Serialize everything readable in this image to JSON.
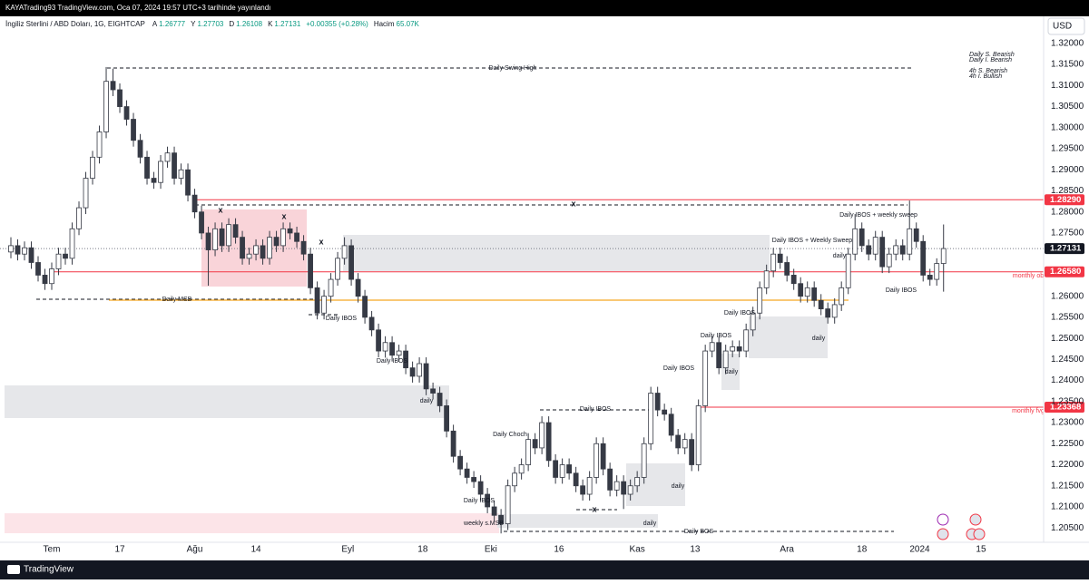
{
  "header": {
    "publisher": "KAYATrading93 TradingView.com, Oca 07, 2024 19:57 UTC+3 tarihinde yayınlandı",
    "symbol": "İngiliz Sterlini / ABD Doları, 1G, EIGHTCAP",
    "ohlc": [
      {
        "key": "A",
        "value": "1.26777"
      },
      {
        "key": "Y",
        "value": "1.27703"
      },
      {
        "key": "D",
        "value": "1.26108"
      },
      {
        "key": "K",
        "value": "1.27131"
      }
    ],
    "change": "+0.00355 (+0.28%)",
    "volume_key": "Hacim",
    "volume": "65.07K"
  },
  "currency": "USD",
  "notes": [
    "Daily S. Bearish",
    "Daily I. Bearish",
    "4h S. Bearish",
    "4h I. Bullish"
  ],
  "footer": "TradingView",
  "chart_data": {
    "type": "candlestick",
    "up_color": "#ffffff",
    "down_color": "#363a45",
    "wick_color": "#363a45",
    "xlim": [
      -1.6,
      151.7
    ],
    "ylim": [
      1.2016,
      1.326
    ],
    "xticks": [
      {
        "value": 6,
        "label": "Tem"
      },
      {
        "value": 16,
        "label": "17"
      },
      {
        "value": 27,
        "label": "Ağu"
      },
      {
        "value": 36,
        "label": "14"
      },
      {
        "value": 49.5,
        "label": "Eyl"
      },
      {
        "value": 60.5,
        "label": "18"
      },
      {
        "value": 70.5,
        "label": "Eki"
      },
      {
        "value": 80.5,
        "label": "16"
      },
      {
        "value": 92,
        "label": "Kas"
      },
      {
        "value": 100.5,
        "label": "13"
      },
      {
        "value": 114,
        "label": "Ara"
      },
      {
        "value": 125,
        "label": "18"
      },
      {
        "value": 133.5,
        "label": "2024"
      },
      {
        "value": 142.5,
        "label": "15"
      }
    ],
    "yticks": [
      {
        "value": 1.205,
        "label": "1.20500"
      },
      {
        "value": 1.21,
        "label": "1.21000"
      },
      {
        "value": 1.215,
        "label": "1.21500"
      },
      {
        "value": 1.22,
        "label": "1.22000"
      },
      {
        "value": 1.225,
        "label": "1.22500"
      },
      {
        "value": 1.23,
        "label": "1.23000"
      },
      {
        "value": 1.235,
        "label": "1.23500"
      },
      {
        "value": 1.24,
        "label": "1.24000"
      },
      {
        "value": 1.245,
        "label": "1.24500"
      },
      {
        "value": 1.25,
        "label": "1.25000"
      },
      {
        "value": 1.255,
        "label": "1.25500"
      },
      {
        "value": 1.26,
        "label": "1.26000"
      },
      {
        "value": 1.275,
        "label": "1.27500"
      },
      {
        "value": 1.28,
        "label": "1.28000"
      },
      {
        "value": 1.285,
        "label": "1.28500"
      },
      {
        "value": 1.29,
        "label": "1.29000"
      },
      {
        "value": 1.295,
        "label": "1.29500"
      },
      {
        "value": 1.3,
        "label": "1.30000"
      },
      {
        "value": 1.305,
        "label": "1.30500"
      },
      {
        "value": 1.31,
        "label": "1.31000"
      },
      {
        "value": 1.315,
        "label": "1.31500"
      },
      {
        "value": 1.32,
        "label": "1.32000"
      }
    ],
    "price_lines": [
      {
        "value": 1.2829,
        "label": "1.28290",
        "color": "#f23645"
      },
      {
        "value": 1.27131,
        "label": "1.27131",
        "color": "#131722"
      },
      {
        "value": 1.2658,
        "label": "1.26580",
        "color": "#f23645"
      },
      {
        "value": 1.23368,
        "label": "1.23368",
        "color": "#f23645"
      }
    ],
    "annotations": [
      "Daily Swing High",
      "x",
      "x",
      "x",
      "x",
      "x",
      "Daily MSB",
      "Daily IBOS",
      "Daily IBOS",
      "daily",
      "Daily Choch",
      "Daily IBOS",
      "weekly s.MSB",
      "Daily IBOS",
      "daily",
      "daily",
      "Daily BOS",
      "Daily IBOS",
      "Daily IBOS",
      "Daily IBOS",
      "daily",
      "daily",
      "Daily IBOS + Weekly Sweep",
      "daily",
      "Daily IBOS + weekly sweep",
      "Daily IBOS",
      "monthly ob",
      "monthly fvg"
    ],
    "ohlc": [
      [
        1.2705,
        1.274,
        1.269,
        1.272
      ],
      [
        1.272,
        1.2735,
        1.2685,
        1.27
      ],
      [
        1.27,
        1.273,
        1.2685,
        1.2715
      ],
      [
        1.2715,
        1.273,
        1.2665,
        1.268
      ],
      [
        1.268,
        1.2695,
        1.2635,
        1.265
      ],
      [
        1.265,
        1.2665,
        1.2615,
        1.263
      ],
      [
        1.263,
        1.268,
        1.2615,
        1.2665
      ],
      [
        1.2665,
        1.2715,
        1.265,
        1.27
      ],
      [
        1.27,
        1.2715,
        1.2675,
        1.269
      ],
      [
        1.269,
        1.2775,
        1.2675,
        1.276
      ],
      [
        1.276,
        1.2825,
        1.2745,
        1.281
      ],
      [
        1.281,
        1.2895,
        1.2795,
        1.288
      ],
      [
        1.288,
        1.2945,
        1.2865,
        1.293
      ],
      [
        1.293,
        1.3005,
        1.2915,
        1.299
      ],
      [
        1.299,
        1.3144,
        1.2975,
        1.311
      ],
      [
        1.311,
        1.314,
        1.3075,
        1.309
      ],
      [
        1.309,
        1.3105,
        1.3035,
        1.305
      ],
      [
        1.305,
        1.3065,
        1.3005,
        1.302
      ],
      [
        1.302,
        1.3035,
        1.2955,
        1.297
      ],
      [
        1.297,
        1.2985,
        1.2915,
        1.293
      ],
      [
        1.293,
        1.2945,
        1.2865,
        1.288
      ],
      [
        1.288,
        1.2895,
        1.2855,
        1.287
      ],
      [
        1.287,
        1.2935,
        1.2855,
        1.292
      ],
      [
        1.292,
        1.2955,
        1.2905,
        1.294
      ],
      [
        1.294,
        1.2955,
        1.2865,
        1.288
      ],
      [
        1.288,
        1.2915,
        1.2865,
        1.29
      ],
      [
        1.29,
        1.2915,
        1.2825,
        1.284
      ],
      [
        1.284,
        1.2855,
        1.2785,
        1.28
      ],
      [
        1.28,
        1.2815,
        1.2735,
        1.275
      ],
      [
        1.275,
        1.2765,
        1.2625,
        1.271
      ],
      [
        1.271,
        1.2775,
        1.2695,
        1.276
      ],
      [
        1.276,
        1.2775,
        1.2705,
        1.272
      ],
      [
        1.272,
        1.2785,
        1.2705,
        1.277
      ],
      [
        1.277,
        1.2785,
        1.2725,
        1.274
      ],
      [
        1.274,
        1.2755,
        1.2675,
        1.269
      ],
      [
        1.269,
        1.2715,
        1.2675,
        1.27
      ],
      [
        1.27,
        1.2735,
        1.2685,
        1.272
      ],
      [
        1.272,
        1.2735,
        1.2675,
        1.269
      ],
      [
        1.269,
        1.2755,
        1.2675,
        1.274
      ],
      [
        1.274,
        1.2755,
        1.2705,
        1.272
      ],
      [
        1.272,
        1.2775,
        1.2705,
        1.276
      ],
      [
        1.276,
        1.2775,
        1.2735,
        1.275
      ],
      [
        1.275,
        1.2765,
        1.2715,
        1.273
      ],
      [
        1.273,
        1.2745,
        1.2685,
        1.27
      ],
      [
        1.27,
        1.2715,
        1.2605,
        1.262
      ],
      [
        1.262,
        1.2635,
        1.2545,
        1.256
      ],
      [
        1.256,
        1.2615,
        1.2545,
        1.26
      ],
      [
        1.26,
        1.2655,
        1.2585,
        1.264
      ],
      [
        1.264,
        1.2705,
        1.2625,
        1.269
      ],
      [
        1.269,
        1.274,
        1.2675,
        1.272
      ],
      [
        1.272,
        1.2735,
        1.2625,
        1.264
      ],
      [
        1.264,
        1.2655,
        1.2585,
        1.26
      ],
      [
        1.26,
        1.2615,
        1.2535,
        1.255
      ],
      [
        1.255,
        1.2565,
        1.2505,
        1.252
      ],
      [
        1.252,
        1.2535,
        1.2455,
        1.247
      ],
      [
        1.247,
        1.2505,
        1.2455,
        1.249
      ],
      [
        1.249,
        1.2505,
        1.2445,
        1.246
      ],
      [
        1.246,
        1.2485,
        1.2445,
        1.247
      ],
      [
        1.247,
        1.2485,
        1.2415,
        1.243
      ],
      [
        1.243,
        1.2445,
        1.2395,
        1.241
      ],
      [
        1.241,
        1.2455,
        1.2395,
        1.244
      ],
      [
        1.244,
        1.2455,
        1.2365,
        1.238
      ],
      [
        1.238,
        1.2395,
        1.2355,
        1.237
      ],
      [
        1.237,
        1.2385,
        1.2325,
        1.234
      ],
      [
        1.234,
        1.2355,
        1.2265,
        1.228
      ],
      [
        1.228,
        1.2295,
        1.2205,
        1.222
      ],
      [
        1.222,
        1.2235,
        1.2175,
        1.219
      ],
      [
        1.219,
        1.2205,
        1.2155,
        1.217
      ],
      [
        1.217,
        1.2185,
        1.2145,
        1.216
      ],
      [
        1.216,
        1.2175,
        1.2115,
        1.213
      ],
      [
        1.213,
        1.2145,
        1.2085,
        1.21
      ],
      [
        1.21,
        1.2115,
        1.2065,
        1.208
      ],
      [
        1.208,
        1.2095,
        1.2037,
        1.206
      ],
      [
        1.206,
        1.2165,
        1.2045,
        1.215
      ],
      [
        1.215,
        1.2195,
        1.2135,
        1.218
      ],
      [
        1.218,
        1.2215,
        1.2165,
        1.22
      ],
      [
        1.22,
        1.2275,
        1.2185,
        1.226
      ],
      [
        1.226,
        1.2275,
        1.2225,
        1.224
      ],
      [
        1.224,
        1.2315,
        1.2225,
        1.23
      ],
      [
        1.23,
        1.2315,
        1.2195,
        1.221
      ],
      [
        1.221,
        1.2225,
        1.2155,
        1.217
      ],
      [
        1.217,
        1.2215,
        1.2155,
        1.22
      ],
      [
        1.22,
        1.2215,
        1.2165,
        1.218
      ],
      [
        1.218,
        1.2195,
        1.2135,
        1.215
      ],
      [
        1.215,
        1.2165,
        1.2115,
        1.213
      ],
      [
        1.213,
        1.2185,
        1.2115,
        1.217
      ],
      [
        1.217,
        1.2265,
        1.2155,
        1.225
      ],
      [
        1.225,
        1.2265,
        1.2175,
        1.219
      ],
      [
        1.219,
        1.2205,
        1.2125,
        1.214
      ],
      [
        1.214,
        1.2175,
        1.2125,
        1.216
      ],
      [
        1.216,
        1.2175,
        1.2095,
        1.213
      ],
      [
        1.213,
        1.2165,
        1.2115,
        1.215
      ],
      [
        1.215,
        1.2185,
        1.2135,
        1.217
      ],
      [
        1.217,
        1.2265,
        1.2155,
        1.225
      ],
      [
        1.225,
        1.2385,
        1.2235,
        1.237
      ],
      [
        1.237,
        1.2385,
        1.2315,
        1.233
      ],
      [
        1.233,
        1.2345,
        1.2305,
        1.232
      ],
      [
        1.232,
        1.2335,
        1.2255,
        1.227
      ],
      [
        1.227,
        1.2285,
        1.2225,
        1.224
      ],
      [
        1.224,
        1.2275,
        1.2225,
        1.226
      ],
      [
        1.226,
        1.2275,
        1.2185,
        1.22
      ],
      [
        1.22,
        1.2355,
        1.2185,
        1.234
      ],
      [
        1.234,
        1.2485,
        1.2325,
        1.247
      ],
      [
        1.247,
        1.2505,
        1.2455,
        1.249
      ],
      [
        1.249,
        1.2505,
        1.2415,
        1.243
      ],
      [
        1.243,
        1.2485,
        1.2415,
        1.247
      ],
      [
        1.247,
        1.2495,
        1.2455,
        1.248
      ],
      [
        1.248,
        1.2495,
        1.2455,
        1.247
      ],
      [
        1.247,
        1.2535,
        1.2455,
        1.252
      ],
      [
        1.252,
        1.2575,
        1.2505,
        1.256
      ],
      [
        1.256,
        1.2635,
        1.2545,
        1.262
      ],
      [
        1.262,
        1.2675,
        1.2605,
        1.266
      ],
      [
        1.266,
        1.2715,
        1.2645,
        1.27
      ],
      [
        1.27,
        1.2715,
        1.2665,
        1.268
      ],
      [
        1.268,
        1.2695,
        1.2635,
        1.265
      ],
      [
        1.265,
        1.2665,
        1.2615,
        1.263
      ],
      [
        1.263,
        1.2645,
        1.2585,
        1.26
      ],
      [
        1.26,
        1.2635,
        1.2585,
        1.262
      ],
      [
        1.262,
        1.2635,
        1.2575,
        1.259
      ],
      [
        1.259,
        1.2605,
        1.2555,
        1.257
      ],
      [
        1.257,
        1.2585,
        1.2535,
        1.255
      ],
      [
        1.255,
        1.2595,
        1.2535,
        1.258
      ],
      [
        1.258,
        1.2635,
        1.2565,
        1.262
      ],
      [
        1.262,
        1.2715,
        1.2605,
        1.27
      ],
      [
        1.27,
        1.2795,
        1.2685,
        1.276
      ],
      [
        1.276,
        1.2775,
        1.2705,
        1.272
      ],
      [
        1.272,
        1.2735,
        1.2685,
        1.27
      ],
      [
        1.27,
        1.2755,
        1.2685,
        1.274
      ],
      [
        1.274,
        1.2755,
        1.2655,
        1.267
      ],
      [
        1.267,
        1.2715,
        1.2655,
        1.27
      ],
      [
        1.27,
        1.2735,
        1.2685,
        1.272
      ],
      [
        1.272,
        1.2735,
        1.2685,
        1.27
      ],
      [
        1.27,
        1.2827,
        1.2685,
        1.276
      ],
      [
        1.276,
        1.2775,
        1.2715,
        1.273
      ],
      [
        1.273,
        1.2745,
        1.2635,
        1.265
      ],
      [
        1.265,
        1.2665,
        1.2625,
        1.264
      ],
      [
        1.264,
        1.269,
        1.2625,
        1.26776
      ],
      [
        1.26777,
        1.27703,
        1.26108,
        1.27131
      ]
    ]
  }
}
